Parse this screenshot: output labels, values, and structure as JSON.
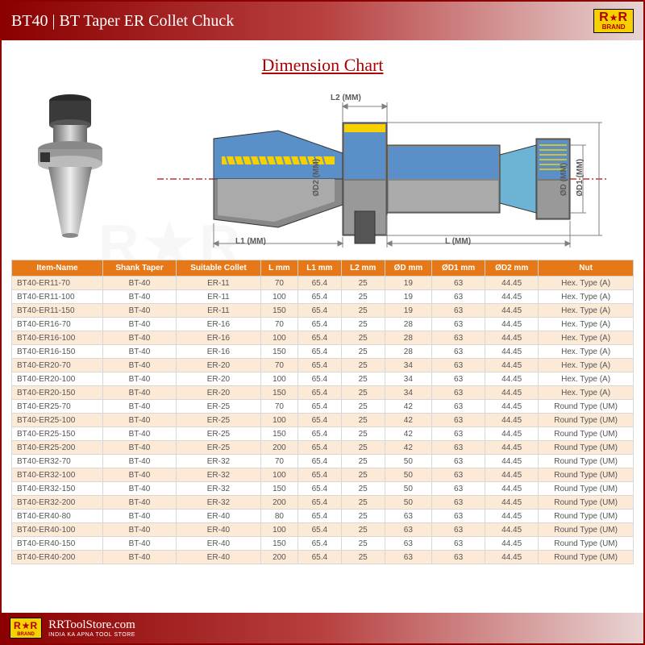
{
  "header": {
    "title": "BT40 | BT Taper ER Collet Chuck",
    "logo_main": "R R",
    "logo_star": "★",
    "logo_sub": "BRAND"
  },
  "chart_title": "Dimension Chart",
  "schematic": {
    "labels": {
      "L2": "L2 (MM)",
      "L1": "L1 (MM)",
      "L": "L (MM)",
      "D": "ØD (MM)",
      "D1": "ØD1 (MM)",
      "D2": "ØD2 (MM)"
    },
    "colors": {
      "taper_fill": "#5a8fc7",
      "taper_thread": "#f7d000",
      "chuck_body": "#6a6a6a",
      "chuck_light": "#b8b8b8",
      "centerline": "#d03030",
      "dim_line": "#808080"
    }
  },
  "table": {
    "header_bg": "#e67817",
    "row_alt_bg": "#fce9d6",
    "columns": [
      "Item-Name",
      "Shank Taper",
      "Suitable Collet",
      "L mm",
      "L1 mm",
      "L2 mm",
      "ØD mm",
      "ØD1 mm",
      "ØD2 mm",
      "Nut"
    ],
    "rows": [
      [
        "BT40-ER11-70",
        "BT-40",
        "ER-11",
        "70",
        "65.4",
        "25",
        "19",
        "63",
        "44.45",
        "Hex. Type (A)"
      ],
      [
        "BT40-ER11-100",
        "BT-40",
        "ER-11",
        "100",
        "65.4",
        "25",
        "19",
        "63",
        "44.45",
        "Hex. Type (A)"
      ],
      [
        "BT40-ER11-150",
        "BT-40",
        "ER-11",
        "150",
        "65.4",
        "25",
        "19",
        "63",
        "44.45",
        "Hex. Type (A)"
      ],
      [
        "BT40-ER16-70",
        "BT-40",
        "ER-16",
        "70",
        "65.4",
        "25",
        "28",
        "63",
        "44.45",
        "Hex. Type (A)"
      ],
      [
        "BT40-ER16-100",
        "BT-40",
        "ER-16",
        "100",
        "65.4",
        "25",
        "28",
        "63",
        "44.45",
        "Hex. Type (A)"
      ],
      [
        "BT40-ER16-150",
        "BT-40",
        "ER-16",
        "150",
        "65.4",
        "25",
        "28",
        "63",
        "44.45",
        "Hex. Type (A)"
      ],
      [
        "BT40-ER20-70",
        "BT-40",
        "ER-20",
        "70",
        "65.4",
        "25",
        "34",
        "63",
        "44.45",
        "Hex. Type (A)"
      ],
      [
        "BT40-ER20-100",
        "BT-40",
        "ER-20",
        "100",
        "65.4",
        "25",
        "34",
        "63",
        "44.45",
        "Hex. Type (A)"
      ],
      [
        "BT40-ER20-150",
        "BT-40",
        "ER-20",
        "150",
        "65.4",
        "25",
        "34",
        "63",
        "44.45",
        "Hex. Type (A)"
      ],
      [
        "BT40-ER25-70",
        "BT-40",
        "ER-25",
        "70",
        "65.4",
        "25",
        "42",
        "63",
        "44.45",
        "Round Type (UM)"
      ],
      [
        "BT40-ER25-100",
        "BT-40",
        "ER-25",
        "100",
        "65.4",
        "25",
        "42",
        "63",
        "44.45",
        "Round Type (UM)"
      ],
      [
        "BT40-ER25-150",
        "BT-40",
        "ER-25",
        "150",
        "65.4",
        "25",
        "42",
        "63",
        "44.45",
        "Round Type (UM)"
      ],
      [
        "BT40-ER25-200",
        "BT-40",
        "ER-25",
        "200",
        "65.4",
        "25",
        "42",
        "63",
        "44.45",
        "Round Type (UM)"
      ],
      [
        "BT40-ER32-70",
        "BT-40",
        "ER-32",
        "70",
        "65.4",
        "25",
        "50",
        "63",
        "44.45",
        "Round Type (UM)"
      ],
      [
        "BT40-ER32-100",
        "BT-40",
        "ER-32",
        "100",
        "65.4",
        "25",
        "50",
        "63",
        "44.45",
        "Round Type (UM)"
      ],
      [
        "BT40-ER32-150",
        "BT-40",
        "ER-32",
        "150",
        "65.4",
        "25",
        "50",
        "63",
        "44.45",
        "Round Type (UM)"
      ],
      [
        "BT40-ER32-200",
        "BT-40",
        "ER-32",
        "200",
        "65.4",
        "25",
        "50",
        "63",
        "44.45",
        "Round Type (UM)"
      ],
      [
        "BT40-ER40-80",
        "BT-40",
        "ER-40",
        "80",
        "65.4",
        "25",
        "63",
        "63",
        "44.45",
        "Round Type (UM)"
      ],
      [
        "BT40-ER40-100",
        "BT-40",
        "ER-40",
        "100",
        "65.4",
        "25",
        "63",
        "63",
        "44.45",
        "Round Type (UM)"
      ],
      [
        "BT40-ER40-150",
        "BT-40",
        "ER-40",
        "150",
        "65.4",
        "25",
        "63",
        "63",
        "44.45",
        "Round Type (UM)"
      ],
      [
        "BT40-ER40-200",
        "BT-40",
        "ER-40",
        "200",
        "65.4",
        "25",
        "63",
        "63",
        "44.45",
        "Round Type (UM)"
      ]
    ]
  },
  "footer": {
    "url": "RRToolStore.com",
    "tagline": "INDIA KA APNA TOOL STORE"
  },
  "watermark": "R★R"
}
